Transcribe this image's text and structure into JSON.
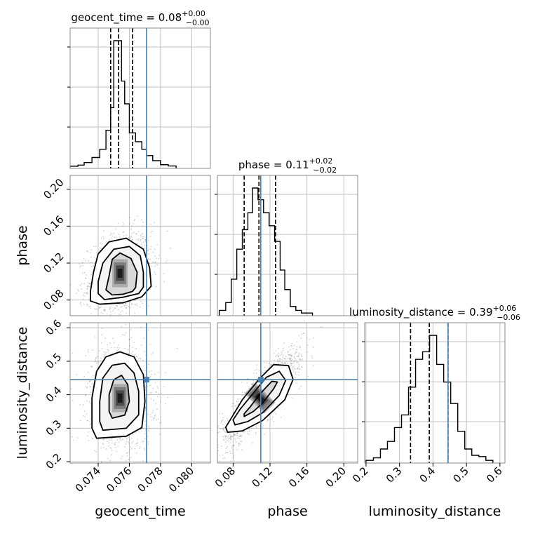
{
  "colors": {
    "truth": "#4682b4",
    "hist": "#000000",
    "grid": "#c0c0c0",
    "scatter": "#7f7f7f"
  },
  "chart_data": {
    "type": "corner",
    "parameters": [
      "geocent_time",
      "phase",
      "luminosity_distance"
    ],
    "truths": {
      "geocent_time": 0.0771,
      "phase": 0.11,
      "luminosity_distance": 0.445
    },
    "titles": [
      {
        "param": "geocent_time",
        "prefix": "geocent_time = ",
        "median": "0.08",
        "plus": "+0.00",
        "minus": "−0.00"
      },
      {
        "param": "phase",
        "prefix": "phase = ",
        "median": "0.11",
        "plus": "+0.02",
        "minus": "−0.02"
      },
      {
        "param": "luminosity_distance",
        "prefix": "luminosity_distance = ",
        "median": "0.39",
        "plus": "+0.06",
        "minus": "−0.06"
      }
    ],
    "axis_labels": {
      "geocent_time": "geocent_time",
      "phase": "phase",
      "luminosity_distance": "luminosity_distance"
    },
    "ranges": {
      "geocent_time": [
        0.0722,
        0.0812
      ],
      "phase": [
        0.063,
        0.215
      ],
      "luminosity_distance": [
        0.196,
        0.615
      ]
    },
    "ticks": {
      "geocent_time": {
        "values": [
          0.074,
          0.076,
          0.078,
          0.08
        ],
        "labels": [
          "0.074",
          "0.076",
          "0.078",
          "0.080"
        ]
      },
      "phase": {
        "values": [
          0.08,
          0.12,
          0.16,
          0.2
        ],
        "labels": [
          "0.08",
          "0.12",
          "0.16",
          "0.20"
        ]
      },
      "luminosity_distance": {
        "values": [
          0.2,
          0.3,
          0.4,
          0.5,
          0.6
        ],
        "labels": [
          "0.2",
          "0.3",
          "0.4",
          "0.5",
          "0.6"
        ]
      }
    },
    "histograms": {
      "geocent_time": {
        "quantiles": [
          0.0748,
          0.0753,
          0.0762
        ],
        "bins": [
          [
            0.0722,
            0.0727,
            0.006
          ],
          [
            0.0727,
            0.0731,
            0.015
          ],
          [
            0.0731,
            0.0736,
            0.035
          ],
          [
            0.0736,
            0.0741,
            0.075
          ],
          [
            0.0741,
            0.0745,
            0.14
          ],
          [
            0.0745,
            0.0748,
            0.29
          ],
          [
            0.0748,
            0.075,
            0.47
          ],
          [
            0.075,
            0.0752,
            1.0
          ],
          [
            0.0752,
            0.0755,
            1.0
          ],
          [
            0.0755,
            0.0757,
            0.68
          ],
          [
            0.0757,
            0.076,
            0.5
          ],
          [
            0.076,
            0.0764,
            0.27
          ],
          [
            0.0764,
            0.0768,
            0.2
          ],
          [
            0.0768,
            0.0771,
            0.14
          ],
          [
            0.0771,
            0.0775,
            0.09
          ],
          [
            0.0775,
            0.078,
            0.05
          ],
          [
            0.078,
            0.0785,
            0.018
          ],
          [
            0.0785,
            0.079,
            0.008
          ]
        ]
      },
      "phase": {
        "quantiles": [
          0.092,
          0.108,
          0.126
        ],
        "bins": [
          [
            0.065,
            0.072,
            0.03
          ],
          [
            0.072,
            0.078,
            0.09
          ],
          [
            0.078,
            0.084,
            0.27
          ],
          [
            0.084,
            0.09,
            0.5
          ],
          [
            0.09,
            0.096,
            0.65
          ],
          [
            0.096,
            0.101,
            0.78
          ],
          [
            0.101,
            0.107,
            0.97
          ],
          [
            0.107,
            0.113,
            0.88
          ],
          [
            0.113,
            0.119,
            0.78
          ],
          [
            0.119,
            0.125,
            0.68
          ],
          [
            0.125,
            0.131,
            0.56
          ],
          [
            0.131,
            0.136,
            0.34
          ],
          [
            0.136,
            0.142,
            0.19
          ],
          [
            0.142,
            0.148,
            0.06
          ],
          [
            0.148,
            0.154,
            0.03
          ],
          [
            0.154,
            0.166,
            0.01
          ]
        ]
      },
      "luminosity_distance": {
        "quantiles": [
          0.333,
          0.389,
          0.445
        ],
        "bins": [
          [
            0.2,
            0.222,
            0.01
          ],
          [
            0.222,
            0.243,
            0.03
          ],
          [
            0.243,
            0.264,
            0.1
          ],
          [
            0.264,
            0.285,
            0.16
          ],
          [
            0.285,
            0.306,
            0.27
          ],
          [
            0.306,
            0.327,
            0.37
          ],
          [
            0.327,
            0.348,
            0.59
          ],
          [
            0.348,
            0.369,
            0.81
          ],
          [
            0.369,
            0.39,
            0.87
          ],
          [
            0.39,
            0.411,
            1.0
          ],
          [
            0.411,
            0.432,
            0.77
          ],
          [
            0.432,
            0.453,
            0.63
          ],
          [
            0.453,
            0.474,
            0.46
          ],
          [
            0.474,
            0.495,
            0.24
          ],
          [
            0.495,
            0.516,
            0.1
          ],
          [
            0.516,
            0.537,
            0.05
          ],
          [
            0.537,
            0.558,
            0.04
          ],
          [
            0.558,
            0.579,
            0.01
          ]
        ]
      }
    },
    "joint": [
      {
        "x": "geocent_time",
        "y": "phase",
        "mean": [
          0.0754,
          0.109
        ],
        "sd": [
          0.00075,
          0.0165
        ],
        "corr": 0.25,
        "contours": [
          [
            [
              0.0749,
              0.0855
            ],
            [
              0.0756,
              0.0863
            ],
            [
              0.0762,
              0.0893
            ],
            [
              0.0764,
              0.0935
            ],
            [
              0.0765,
              0.11
            ],
            [
              0.0761,
              0.125
            ],
            [
              0.0754,
              0.131
            ],
            [
              0.0749,
              0.124
            ],
            [
              0.0747,
              0.106
            ],
            [
              0.0745,
              0.091
            ]
          ],
          [
            [
              0.0744,
              0.0805
            ],
            [
              0.0756,
              0.083
            ],
            [
              0.0766,
              0.087
            ],
            [
              0.0769,
              0.094
            ],
            [
              0.0769,
              0.11
            ],
            [
              0.0767,
              0.128
            ],
            [
              0.076,
              0.138
            ],
            [
              0.075,
              0.135
            ],
            [
              0.0743,
              0.12
            ],
            [
              0.074,
              0.1
            ],
            [
              0.074,
              0.087
            ]
          ],
          [
            [
              0.0741,
              0.0755
            ],
            [
              0.0756,
              0.077
            ],
            [
              0.0768,
              0.0835
            ],
            [
              0.0774,
              0.095
            ],
            [
              0.0773,
              0.115
            ],
            [
              0.0769,
              0.135
            ],
            [
              0.0758,
              0.147
            ],
            [
              0.0747,
              0.143
            ],
            [
              0.074,
              0.13
            ],
            [
              0.0737,
              0.11
            ],
            [
              0.0735,
              0.089
            ],
            [
              0.0735,
              0.079
            ]
          ]
        ]
      },
      {
        "x": "geocent_time",
        "y": "luminosity_distance",
        "mean": [
          0.0754,
          0.39
        ],
        "sd": [
          0.00075,
          0.055
        ],
        "corr": -0.05,
        "contours": [
          [
            [
              0.0749,
              0.33
            ],
            [
              0.0757,
              0.339
            ],
            [
              0.076,
              0.38
            ],
            [
              0.0759,
              0.43
            ],
            [
              0.0755,
              0.458
            ],
            [
              0.075,
              0.445
            ],
            [
              0.0747,
              0.4
            ],
            [
              0.0747,
              0.35
            ]
          ],
          [
            [
              0.0743,
              0.294
            ],
            [
              0.0758,
              0.3
            ],
            [
              0.0766,
              0.34
            ],
            [
              0.0766,
              0.41
            ],
            [
              0.0763,
              0.465
            ],
            [
              0.0757,
              0.494
            ],
            [
              0.0749,
              0.488
            ],
            [
              0.0743,
              0.45
            ],
            [
              0.0741,
              0.38
            ],
            [
              0.0741,
              0.32
            ]
          ],
          [
            [
              0.0739,
              0.27
            ],
            [
              0.0758,
              0.276
            ],
            [
              0.0768,
              0.302
            ],
            [
              0.077,
              0.38
            ],
            [
              0.0769,
              0.46
            ],
            [
              0.0763,
              0.513
            ],
            [
              0.0754,
              0.528
            ],
            [
              0.0745,
              0.513
            ],
            [
              0.0739,
              0.47
            ],
            [
              0.0736,
              0.39
            ],
            [
              0.0736,
              0.3
            ]
          ]
        ]
      },
      {
        "x": "phase",
        "y": "luminosity_distance",
        "mean": [
          0.109,
          0.39
        ],
        "sd": [
          0.0165,
          0.055
        ],
        "corr": 0.88,
        "contours": [
          [
            [
              0.092,
              0.335
            ],
            [
              0.102,
              0.35
            ],
            [
              0.112,
              0.375
            ],
            [
              0.124,
              0.418
            ],
            [
              0.128,
              0.438
            ],
            [
              0.122,
              0.44
            ],
            [
              0.11,
              0.405
            ],
            [
              0.098,
              0.362
            ],
            [
              0.092,
              0.343
            ]
          ],
          [
            [
              0.082,
              0.31
            ],
            [
              0.096,
              0.32
            ],
            [
              0.112,
              0.346
            ],
            [
              0.13,
              0.398
            ],
            [
              0.137,
              0.443
            ],
            [
              0.13,
              0.47
            ],
            [
              0.116,
              0.452
            ],
            [
              0.102,
              0.405
            ],
            [
              0.088,
              0.358
            ],
            [
              0.08,
              0.325
            ]
          ],
          [
            [
              0.074,
              0.288
            ],
            [
              0.09,
              0.292
            ],
            [
              0.112,
              0.323
            ],
            [
              0.136,
              0.385
            ],
            [
              0.145,
              0.446
            ],
            [
              0.14,
              0.487
            ],
            [
              0.124,
              0.49
            ],
            [
              0.108,
              0.446
            ],
            [
              0.09,
              0.385
            ],
            [
              0.078,
              0.33
            ],
            [
              0.072,
              0.303
            ]
          ]
        ]
      }
    ]
  }
}
